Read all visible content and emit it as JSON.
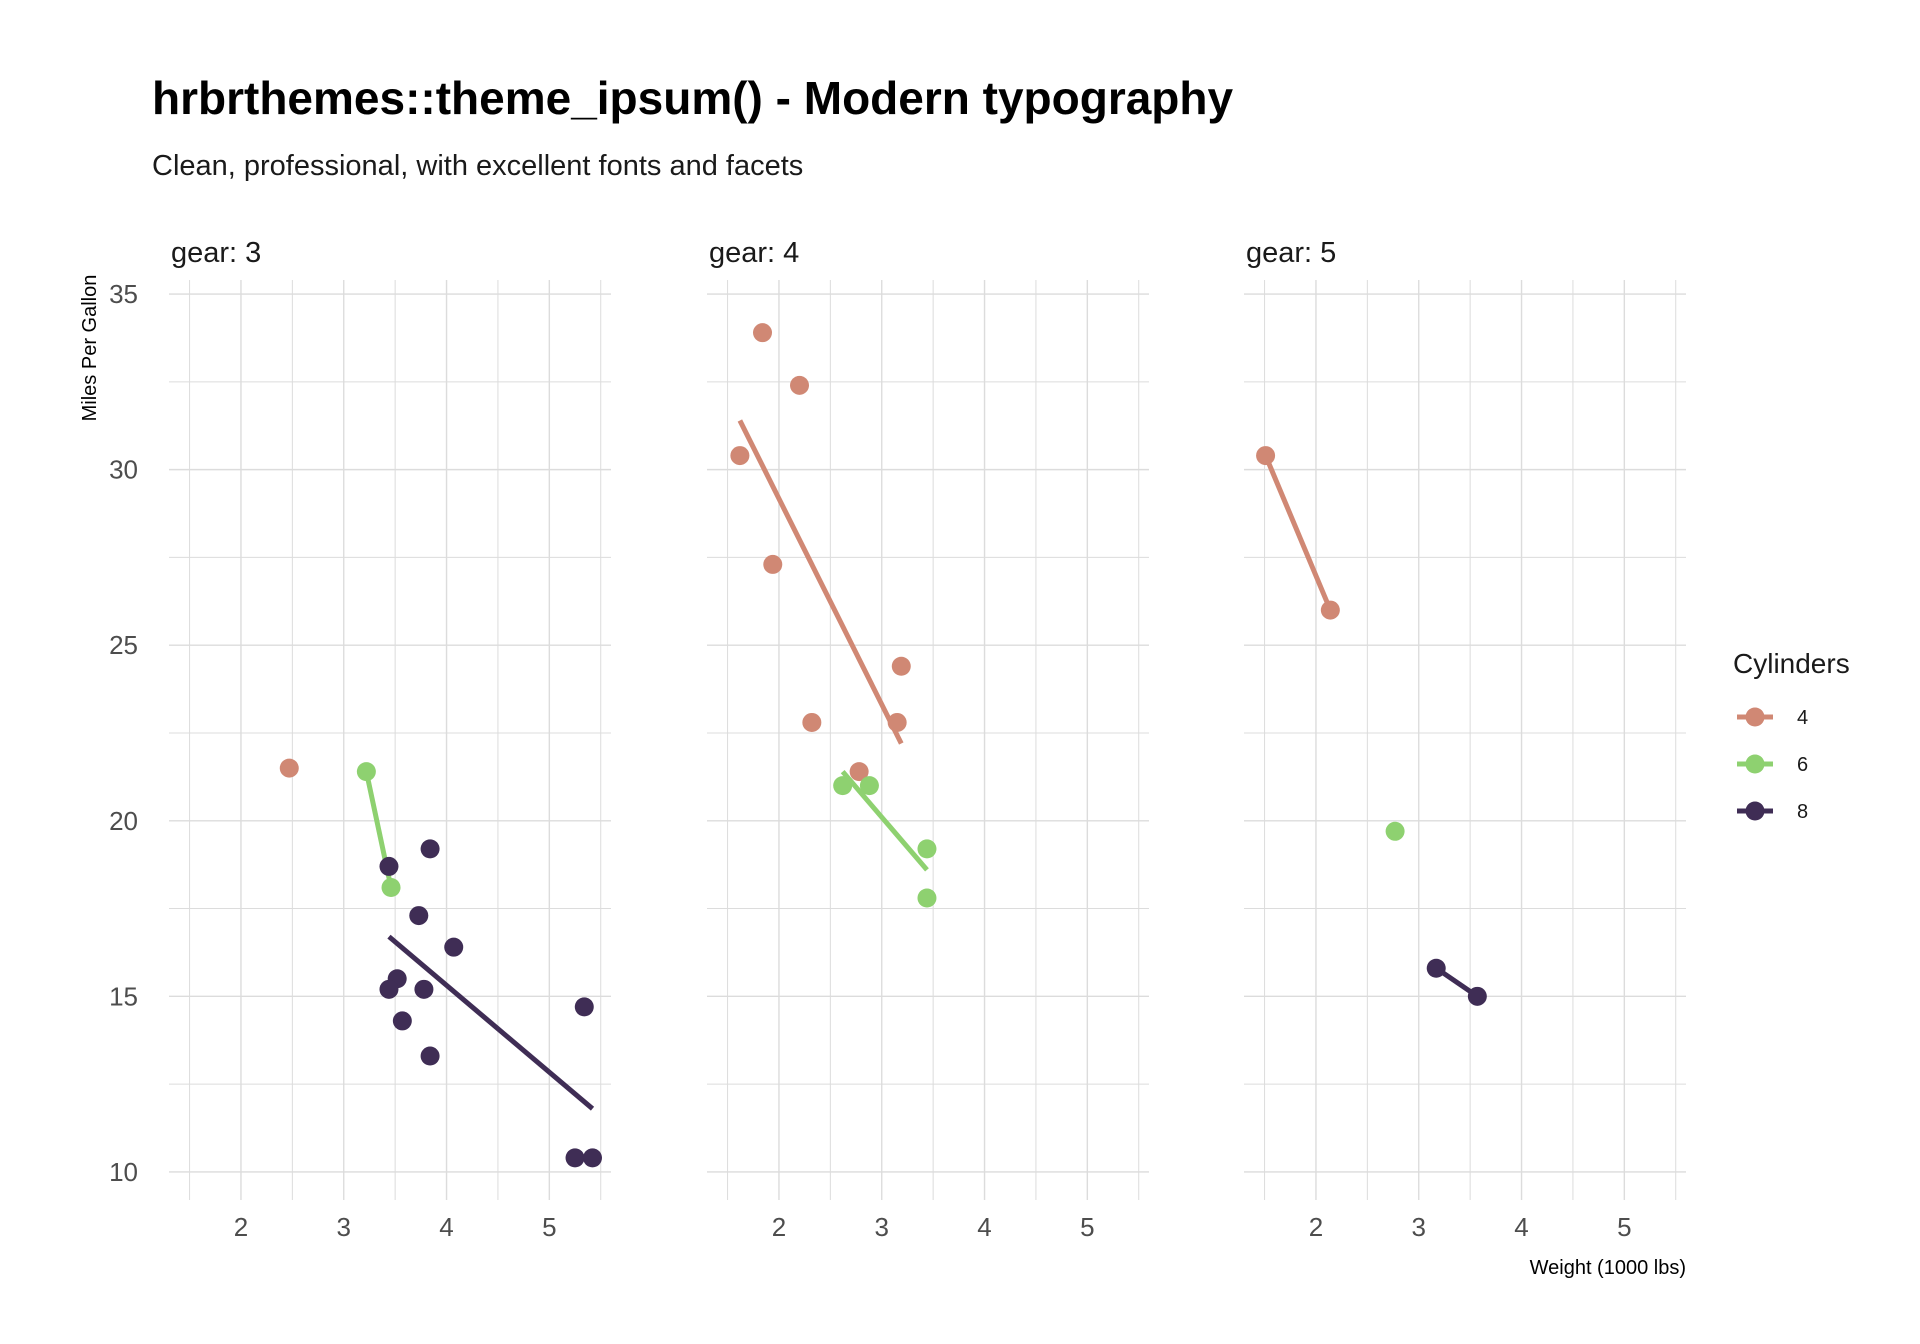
{
  "colors": {
    "4": "#D08874",
    "6": "#8ED170",
    "8": "#3F2D55",
    "grid": "#DCDCDC"
  },
  "chart_data": {
    "type": "scatter",
    "title": "hrbrthemes::theme_ipsum() - Modern typography",
    "subtitle": "Clean, professional, with excellent fonts and facets",
    "xlabel": "Weight (1000 lbs)",
    "ylabel": "Miles Per Gallon",
    "xlim": [
      1.3,
      5.6
    ],
    "ylim": [
      9.2,
      35.4
    ],
    "x_ticks": [
      2,
      3,
      4,
      5
    ],
    "y_ticks": [
      10,
      15,
      20,
      25,
      30,
      35
    ],
    "grid": true,
    "legend": {
      "title": "Cylinders",
      "position": "right",
      "items": [
        {
          "label": "4",
          "group": "4"
        },
        {
          "label": "6",
          "group": "6"
        },
        {
          "label": "8",
          "group": "8"
        }
      ]
    },
    "facets": [
      {
        "label": "gear: 3",
        "points": [
          {
            "x": 2.47,
            "y": 21.5,
            "group": "4"
          },
          {
            "x": 3.22,
            "y": 21.4,
            "group": "6"
          },
          {
            "x": 3.46,
            "y": 18.1,
            "group": "6"
          },
          {
            "x": 3.44,
            "y": 18.7,
            "group": "8"
          },
          {
            "x": 3.84,
            "y": 19.2,
            "group": "8"
          },
          {
            "x": 3.73,
            "y": 17.3,
            "group": "8"
          },
          {
            "x": 4.07,
            "y": 16.4,
            "group": "8"
          },
          {
            "x": 3.52,
            "y": 15.5,
            "group": "8"
          },
          {
            "x": 3.44,
            "y": 15.2,
            "group": "8"
          },
          {
            "x": 3.78,
            "y": 15.2,
            "group": "8"
          },
          {
            "x": 3.57,
            "y": 14.3,
            "group": "8"
          },
          {
            "x": 3.84,
            "y": 13.3,
            "group": "8"
          },
          {
            "x": 5.34,
            "y": 14.7,
            "group": "8"
          },
          {
            "x": 5.25,
            "y": 10.4,
            "group": "8"
          },
          {
            "x": 5.42,
            "y": 10.4,
            "group": "8"
          }
        ],
        "fits": [
          {
            "group": "6",
            "x": [
              3.22,
              3.46
            ],
            "y": [
              21.4,
              18.1
            ]
          },
          {
            "group": "8",
            "x": [
              3.44,
              5.42
            ],
            "y": [
              16.7,
              11.8
            ]
          }
        ]
      },
      {
        "label": "gear: 4",
        "points": [
          {
            "x": 1.84,
            "y": 33.9,
            "group": "4"
          },
          {
            "x": 2.2,
            "y": 32.4,
            "group": "4"
          },
          {
            "x": 1.62,
            "y": 30.4,
            "group": "4"
          },
          {
            "x": 1.94,
            "y": 27.3,
            "group": "4"
          },
          {
            "x": 3.19,
            "y": 24.4,
            "group": "4"
          },
          {
            "x": 2.32,
            "y": 22.8,
            "group": "4"
          },
          {
            "x": 3.15,
            "y": 22.8,
            "group": "4"
          },
          {
            "x": 2.78,
            "y": 21.4,
            "group": "4"
          },
          {
            "x": 2.62,
            "y": 21.0,
            "group": "6"
          },
          {
            "x": 2.88,
            "y": 21.0,
            "group": "6"
          },
          {
            "x": 3.44,
            "y": 19.2,
            "group": "6"
          },
          {
            "x": 3.44,
            "y": 17.8,
            "group": "6"
          }
        ],
        "fits": [
          {
            "group": "4",
            "x": [
              1.62,
              3.19
            ],
            "y": [
              31.4,
              22.2
            ]
          },
          {
            "group": "6",
            "x": [
              2.62,
              3.44
            ],
            "y": [
              21.4,
              18.6
            ]
          }
        ]
      },
      {
        "label": "gear: 5",
        "points": [
          {
            "x": 1.51,
            "y": 30.4,
            "group": "4"
          },
          {
            "x": 2.14,
            "y": 26.0,
            "group": "4"
          },
          {
            "x": 2.77,
            "y": 19.7,
            "group": "6"
          },
          {
            "x": 3.17,
            "y": 15.8,
            "group": "8"
          },
          {
            "x": 3.57,
            "y": 15.0,
            "group": "8"
          }
        ],
        "fits": [
          {
            "group": "4",
            "x": [
              1.51,
              2.14
            ],
            "y": [
              30.4,
              26.0
            ]
          },
          {
            "group": "8",
            "x": [
              3.17,
              3.57
            ],
            "y": [
              15.8,
              15.0
            ]
          }
        ]
      }
    ]
  }
}
